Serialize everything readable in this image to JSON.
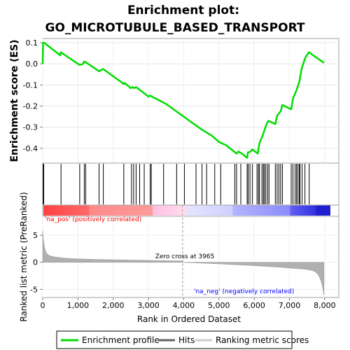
{
  "chart_data": {
    "type": "line",
    "title_line1": "Enrichment plot:",
    "title_line2": "GO_MICROTUBULE_BASED_TRANSPORT",
    "xlabel": "Rank in Ordered Dataset",
    "ylabel_top": "Enrichment score (ES)",
    "ylabel_bottom": "Ranked list metric (PreRanked)",
    "x_ticks": [
      0,
      1000,
      2000,
      3000,
      4000,
      5000,
      6000,
      7000,
      8000
    ],
    "x_tick_labels": [
      "0",
      "1,000",
      "2,000",
      "3,000",
      "4,000",
      "5,000",
      "6,000",
      "7,000",
      "8,000"
    ],
    "xlim": [
      0,
      8400
    ],
    "es_ylim": [
      -0.47,
      0.12
    ],
    "es_ticks": [
      0.1,
      0.0,
      -0.1,
      -0.2,
      -0.3,
      -0.4
    ],
    "es_tick_labels": [
      "0.1",
      "0.0",
      "-0.1",
      "-0.2",
      "-0.3",
      "-0.4"
    ],
    "metric_ylim": [
      -6.5,
      8.5
    ],
    "metric_ticks": [
      5,
      0,
      -5
    ],
    "metric_tick_labels": [
      "5",
      "0",
      "-5"
    ],
    "zero_cross_rank": 3965,
    "zero_cross_label": "Zero cross at 3965",
    "pos_label": "'na_pos' (positively correlated)",
    "neg_label": "'na_neg' (negatively correlated)",
    "n_genes": 7980,
    "series": [
      {
        "name": "Enrichment profile",
        "color": "#00dd00",
        "x": [
          0,
          10,
          40,
          500,
          510,
          1000,
          1050,
          1150,
          1170,
          1200,
          1600,
          1700,
          1720,
          2300,
          2320,
          2500,
          2550,
          2600,
          2650,
          3000,
          3050,
          3100,
          3500,
          4000,
          4500,
          4800,
          5000,
          5200,
          5500,
          5550,
          5650,
          5800,
          5820,
          5900,
          5950,
          6100,
          6150,
          6250,
          6350,
          6400,
          6600,
          6650,
          6750,
          6800,
          7050,
          7100,
          7200,
          7280,
          7350,
          7450,
          7550,
          7980
        ],
        "y": [
          0.0,
          0.1,
          0.1,
          0.04,
          0.055,
          0.0,
          -0.005,
          0.0,
          0.01,
          0.01,
          -0.035,
          -0.025,
          -0.025,
          -0.095,
          -0.09,
          -0.115,
          -0.11,
          -0.115,
          -0.11,
          -0.155,
          -0.15,
          -0.155,
          -0.19,
          -0.25,
          -0.31,
          -0.34,
          -0.37,
          -0.385,
          -0.425,
          -0.415,
          -0.425,
          -0.445,
          -0.42,
          -0.415,
          -0.405,
          -0.425,
          -0.375,
          -0.335,
          -0.285,
          -0.27,
          -0.285,
          -0.245,
          -0.225,
          -0.195,
          -0.215,
          -0.165,
          -0.125,
          -0.085,
          -0.02,
          0.03,
          0.055,
          0.005
        ]
      }
    ],
    "hits": [
      15,
      30,
      520,
      1050,
      1180,
      1220,
      1600,
      1720,
      2300,
      2520,
      2580,
      2650,
      2750,
      2880,
      3050,
      3080,
      3430,
      3800,
      4020,
      4350,
      4520,
      4650,
      4880,
      5050,
      5450,
      5500,
      5620,
      5800,
      5830,
      5880,
      5950,
      6080,
      6120,
      6150,
      6220,
      6260,
      6290,
      6330,
      6380,
      6420,
      6600,
      6650,
      6700,
      6750,
      6800,
      7050,
      7100,
      7160,
      7200,
      7240,
      7280,
      7300,
      7360,
      7440,
      7560
    ],
    "colors": {
      "es_line": "#00dd00",
      "hits": "#000000",
      "metric_fill": "#b0b0b0",
      "pos_text": "#ff0000",
      "neg_text": "#0000ff",
      "zero_line": "#a0a0a0"
    },
    "legend": [
      "Enrichment profile",
      "Hits",
      "Ranking metric scores"
    ]
  }
}
